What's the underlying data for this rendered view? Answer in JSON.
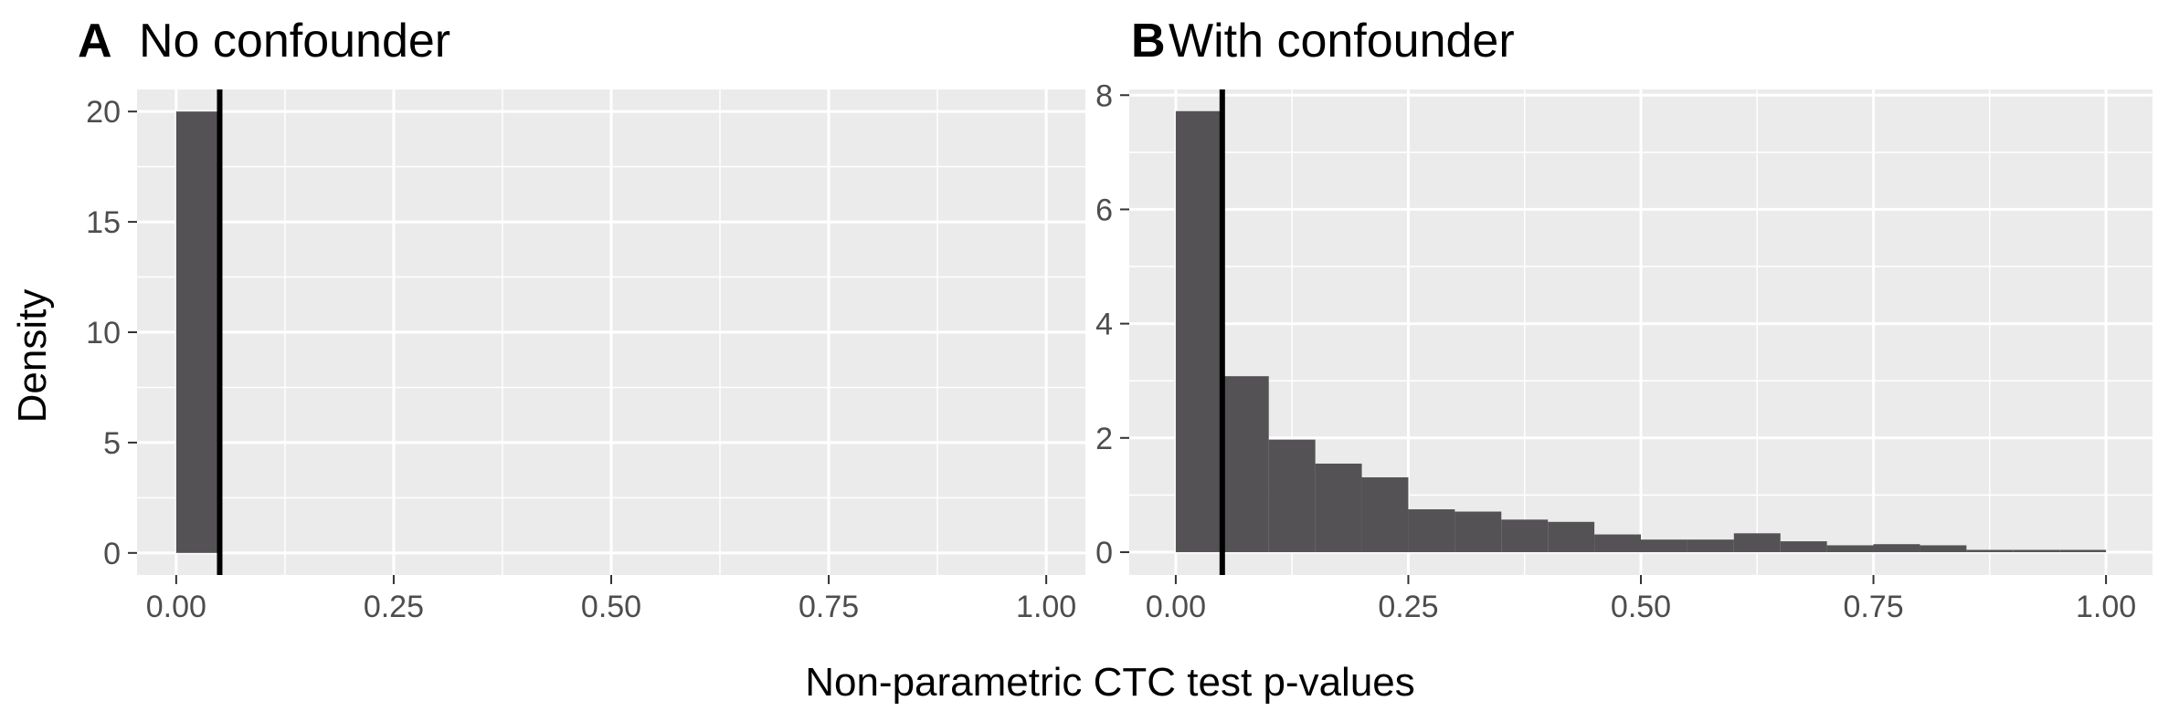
{
  "shared": {
    "xlabel": "Non-parametric CTC test p-values",
    "ylabel": "Density"
  },
  "chart_data": [
    {
      "type": "bar",
      "tag": "A",
      "title": "No confounder",
      "xlim": [
        -0.045,
        1.045
      ],
      "ylim": [
        -1.0,
        21.0
      ],
      "x_ticks": [
        0,
        0.25,
        0.5,
        0.75,
        1.0
      ],
      "x_tick_labels": [
        "0.00",
        "0.25",
        "0.50",
        "0.75",
        "1.00"
      ],
      "y_ticks": [
        0,
        5,
        10,
        15,
        20
      ],
      "y_tick_labels": [
        "0",
        "5",
        "10",
        "15",
        "20"
      ],
      "bin_width": 0.05,
      "bins_start": [
        0.0
      ],
      "values": [
        20.0
      ],
      "vline": 0.05,
      "bar_color": "#545254"
    },
    {
      "type": "bar",
      "tag": "B",
      "title": "With confounder",
      "xlim": [
        -0.05,
        1.05
      ],
      "ylim": [
        -0.4,
        8.1
      ],
      "x_ticks": [
        0,
        0.25,
        0.5,
        0.75,
        1.0
      ],
      "x_tick_labels": [
        "0.00",
        "0.25",
        "0.50",
        "0.75",
        "1.00"
      ],
      "y_ticks": [
        0,
        2,
        4,
        6,
        8
      ],
      "y_tick_labels": [
        "0",
        "2",
        "4",
        "6",
        "8"
      ],
      "bin_width": 0.05,
      "bins_start": [
        0.0,
        0.05,
        0.1,
        0.15,
        0.2,
        0.25,
        0.3,
        0.35,
        0.4,
        0.45,
        0.5,
        0.55,
        0.6,
        0.65,
        0.7,
        0.75,
        0.8,
        0.85,
        0.9,
        0.95
      ],
      "values": [
        7.72,
        3.08,
        1.97,
        1.55,
        1.31,
        0.75,
        0.71,
        0.57,
        0.53,
        0.31,
        0.22,
        0.22,
        0.33,
        0.19,
        0.12,
        0.14,
        0.12,
        0.04,
        0.04,
        0.04
      ],
      "vline": 0.05,
      "bar_color": "#545254"
    }
  ]
}
